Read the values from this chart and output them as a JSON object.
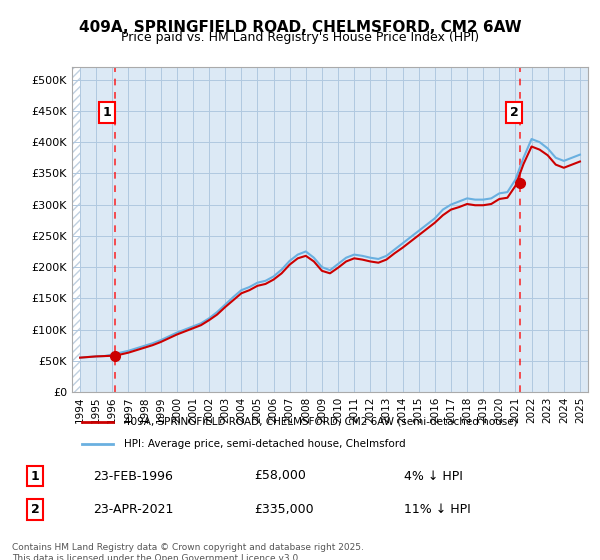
{
  "title_line1": "409A, SPRINGFIELD ROAD, CHELMSFORD, CM2 6AW",
  "title_line2": "Price paid vs. HM Land Registry's House Price Index (HPI)",
  "ylabel": "",
  "xlim_start": 1993.5,
  "xlim_end": 2025.5,
  "ylim_min": 0,
  "ylim_max": 520000,
  "ytick_values": [
    0,
    50000,
    100000,
    150000,
    200000,
    250000,
    300000,
    350000,
    400000,
    450000,
    500000
  ],
  "ytick_labels": [
    "£0",
    "£50K",
    "£100K",
    "£150K",
    "£200K",
    "£250K",
    "£300K",
    "£350K",
    "£400K",
    "£450K",
    "£500K"
  ],
  "xtick_years": [
    1994,
    1995,
    1996,
    1997,
    1998,
    1999,
    2000,
    2001,
    2002,
    2003,
    2004,
    2005,
    2006,
    2007,
    2008,
    2009,
    2010,
    2011,
    2012,
    2013,
    2014,
    2015,
    2016,
    2017,
    2018,
    2019,
    2020,
    2021,
    2022,
    2023,
    2024,
    2025
  ],
  "background_color": "#dce9f5",
  "hatch_color": "#c0d0e0",
  "grid_color": "#b0c8e0",
  "line_red_color": "#cc0000",
  "line_blue_color": "#6ab0e0",
  "sale1_year": 1996.15,
  "sale1_price": 58000,
  "sale2_year": 2021.31,
  "sale2_price": 335000,
  "legend_red_label": "409A, SPRINGFIELD ROAD, CHELMSFORD, CM2 6AW (semi-detached house)",
  "legend_blue_label": "HPI: Average price, semi-detached house, Chelmsford",
  "ann1_label": "1",
  "ann2_label": "2",
  "ann1_date": "23-FEB-1996",
  "ann1_price": "£58,000",
  "ann1_hpi": "4% ↓ HPI",
  "ann2_date": "23-APR-2021",
  "ann2_price": "£335,000",
  "ann2_hpi": "11% ↓ HPI",
  "footer": "Contains HM Land Registry data © Crown copyright and database right 2025.\nThis data is licensed under the Open Government Licence v3.0.",
  "hpi_years": [
    1994.0,
    1994.5,
    1995.0,
    1995.5,
    1996.0,
    1996.5,
    1997.0,
    1997.5,
    1998.0,
    1998.5,
    1999.0,
    1999.5,
    2000.0,
    2000.5,
    2001.0,
    2001.5,
    2002.0,
    2002.5,
    2003.0,
    2003.5,
    2004.0,
    2004.5,
    2005.0,
    2005.5,
    2006.0,
    2006.5,
    2007.0,
    2007.5,
    2008.0,
    2008.5,
    2009.0,
    2009.5,
    2010.0,
    2010.5,
    2011.0,
    2011.5,
    2012.0,
    2012.5,
    2013.0,
    2013.5,
    2014.0,
    2014.5,
    2015.0,
    2015.5,
    2016.0,
    2016.5,
    2017.0,
    2017.5,
    2018.0,
    2018.5,
    2019.0,
    2019.5,
    2020.0,
    2020.5,
    2021.0,
    2021.5,
    2022.0,
    2022.5,
    2023.0,
    2023.5,
    2024.0,
    2024.5,
    2025.0
  ],
  "hpi_values": [
    55000,
    56000,
    57000,
    57500,
    60000,
    63000,
    66000,
    70000,
    74000,
    78000,
    83000,
    89000,
    95000,
    100000,
    105000,
    110000,
    118000,
    128000,
    140000,
    152000,
    163000,
    168000,
    175000,
    178000,
    185000,
    196000,
    210000,
    220000,
    225000,
    215000,
    200000,
    195000,
    205000,
    215000,
    220000,
    218000,
    215000,
    213000,
    218000,
    228000,
    238000,
    248000,
    258000,
    268000,
    278000,
    292000,
    300000,
    305000,
    310000,
    308000,
    308000,
    310000,
    318000,
    320000,
    340000,
    375000,
    405000,
    400000,
    390000,
    375000,
    370000,
    375000,
    380000
  ],
  "price_years": [
    1994.0,
    1994.5,
    1995.0,
    1995.5,
    1996.0,
    1996.5,
    1997.0,
    1997.5,
    1998.0,
    1998.5,
    1999.0,
    1999.5,
    2000.0,
    2000.5,
    2001.0,
    2001.5,
    2002.0,
    2002.5,
    2003.0,
    2003.5,
    2004.0,
    2004.5,
    2005.0,
    2005.5,
    2006.0,
    2006.5,
    2007.0,
    2007.5,
    2008.0,
    2008.5,
    2009.0,
    2009.5,
    2010.0,
    2010.5,
    2011.0,
    2011.5,
    2012.0,
    2012.5,
    2013.0,
    2013.5,
    2014.0,
    2014.5,
    2015.0,
    2015.5,
    2016.0,
    2016.5,
    2017.0,
    2017.5,
    2018.0,
    2018.5,
    2019.0,
    2019.5,
    2020.0,
    2020.5,
    2021.0,
    2021.5,
    2022.0,
    2022.5,
    2023.0,
    2023.5,
    2024.0,
    2024.5,
    2025.0
  ],
  "price_values": [
    55000,
    56000,
    57000,
    57500,
    58000,
    60000,
    63000,
    67000,
    71000,
    75000,
    80000,
    86000,
    92000,
    97000,
    102000,
    107000,
    115000,
    124000,
    136000,
    147000,
    158000,
    163000,
    170000,
    173000,
    180000,
    190000,
    204000,
    214000,
    218000,
    209000,
    194000,
    190000,
    199000,
    209000,
    214000,
    212000,
    209000,
    207000,
    212000,
    222000,
    231000,
    241000,
    251000,
    261000,
    271000,
    283000,
    292000,
    296000,
    301000,
    299000,
    299000,
    301000,
    309000,
    311000,
    330000,
    365000,
    393000,
    388000,
    379000,
    364000,
    359000,
    364000,
    369000
  ]
}
